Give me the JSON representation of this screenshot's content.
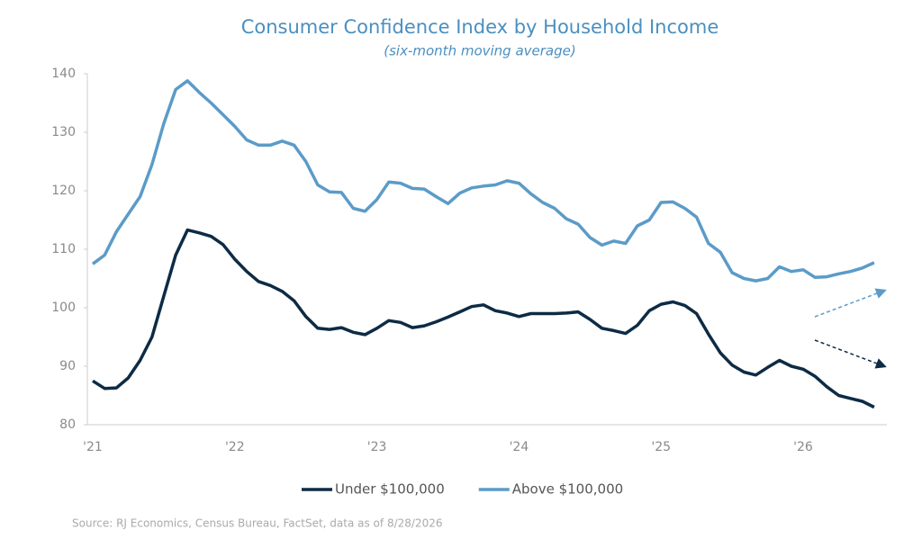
{
  "chart_data": {
    "type": "line",
    "title": "Consumer Confidence Index by Household Income",
    "subtitle": "(six-month moving average)",
    "source": "Source: RJ Economics, Census Bureau, FactSet, data as of 8/28/2026",
    "categories": [
      "'21",
      null,
      null,
      null,
      null,
      null,
      null,
      null,
      null,
      null,
      null,
      null,
      "'22",
      null,
      null,
      null,
      null,
      null,
      null,
      null,
      null,
      null,
      null,
      null,
      "'23",
      null,
      null,
      null,
      null,
      null,
      null,
      null,
      null,
      null,
      null,
      null,
      "'24",
      null,
      null,
      null,
      null,
      null,
      null,
      null,
      null,
      null,
      null,
      null,
      "'25",
      null,
      null,
      null,
      null,
      null,
      null,
      null,
      null,
      null,
      null,
      null,
      "'26",
      null,
      null,
      null,
      null,
      null,
      null
    ],
    "series": [
      {
        "name": "Under $100,000",
        "color": "#0d2b45",
        "values": [
          87.5,
          86.2,
          86.3,
          88,
          91,
          95,
          102,
          109,
          113.3,
          112.8,
          112.2,
          110.8,
          108.3,
          106.2,
          104.5,
          103.8,
          102.8,
          101.2,
          98.5,
          96.5,
          96.3,
          96.6,
          95.8,
          95.4,
          96.5,
          97.8,
          97.5,
          96.6,
          96.9,
          97.6,
          98.4,
          99.3,
          100.2,
          100.5,
          99.5,
          99.1,
          98.5,
          99,
          99,
          99,
          99.1,
          99.3,
          98,
          96.5,
          96.1,
          95.6,
          97,
          99.5,
          100.6,
          101,
          100.4,
          99,
          95.5,
          92.3,
          90.2,
          89,
          88.5,
          89.8,
          91,
          90,
          89.5,
          88.3,
          86.5,
          85,
          84.5,
          84,
          83
        ]
      },
      {
        "name": "Above $100,000",
        "color": "#5b9bc8",
        "values": [
          107.5,
          109,
          113,
          116,
          119,
          124.5,
          131.5,
          137.3,
          138.8,
          136.8,
          135,
          133,
          131,
          128.7,
          127.8,
          127.8,
          128.5,
          127.8,
          125,
          121,
          119.8,
          119.7,
          117,
          116.5,
          118.5,
          121.5,
          121.3,
          120.4,
          120.3,
          119,
          117.8,
          119.6,
          120.5,
          120.8,
          121,
          121.7,
          121.3,
          119.5,
          118,
          117,
          115.2,
          114.3,
          112,
          110.7,
          111.4,
          111,
          114,
          115,
          118,
          118.1,
          117,
          115.5,
          111,
          109.5,
          106,
          105,
          104.6,
          105,
          107,
          106.2,
          106.5,
          105.2,
          105.3,
          105.8,
          106.2,
          106.8,
          107.7
        ]
      }
    ],
    "ylim": [
      80,
      140
    ],
    "yticks": [
      80,
      90,
      100,
      110,
      120,
      130,
      140
    ],
    "grid": false
  }
}
